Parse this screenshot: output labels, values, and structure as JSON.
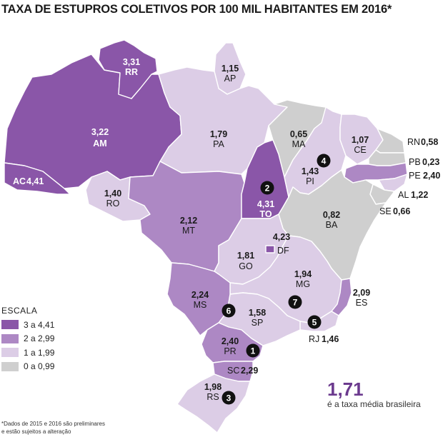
{
  "title": "TAXA DE ESTUPROS COLETIVOS POR 100 MIL HABITANTES EM 2016*",
  "colors": {
    "c1": "#8a56a8",
    "c2": "#ad88c4",
    "c3": "#dccde6",
    "c4": "#cfcfcf",
    "accent": "#6b3a8e",
    "marker": "#111111"
  },
  "legend": {
    "title": "ESCALA",
    "items": [
      {
        "label": "3 a 4,41",
        "color": "#8a56a8"
      },
      {
        "label": "2 a 2,99",
        "color": "#ad88c4"
      },
      {
        "label": "1 a 1,99",
        "color": "#dccde6"
      },
      {
        "label": "0 a 0,99",
        "color": "#cfcfcf"
      }
    ]
  },
  "states": {
    "AC": {
      "value": "4,41",
      "abbr": "AC",
      "category": "3 a 4,41"
    },
    "AM": {
      "value": "3,22",
      "abbr": "AM",
      "category": "3 a 4,41"
    },
    "RR": {
      "value": "3,31",
      "abbr": "RR",
      "category": "3 a 4,41"
    },
    "AP": {
      "value": "1,15",
      "abbr": "AP",
      "category": "1 a 1,99"
    },
    "PA": {
      "value": "1,79",
      "abbr": "PA",
      "category": "1 a 1,99"
    },
    "RO": {
      "value": "1,40",
      "abbr": "RO",
      "category": "1 a 1,99"
    },
    "MT": {
      "value": "2,12",
      "abbr": "MT",
      "category": "2 a 2,99"
    },
    "TO": {
      "value": "4,31",
      "abbr": "TO",
      "category": "3 a 4,41"
    },
    "MA": {
      "value": "0,65",
      "abbr": "MA",
      "category": "0 a 0,99"
    },
    "PI": {
      "value": "1,43",
      "abbr": "PI",
      "category": "1 a 1,99"
    },
    "CE": {
      "value": "1,07",
      "abbr": "CE",
      "category": "1 a 1,99"
    },
    "RN": {
      "value": "0,58",
      "abbr": "RN",
      "category": "0 a 0,99"
    },
    "PB": {
      "value": "0,23",
      "abbr": "PB",
      "category": "0 a 0,99"
    },
    "PE": {
      "value": "2,40",
      "abbr": "PE",
      "category": "2 a 2,99"
    },
    "AL": {
      "value": "1,22",
      "abbr": "AL",
      "category": "1 a 1,99"
    },
    "SE": {
      "value": "0,66",
      "abbr": "SE",
      "category": "0 a 0,99"
    },
    "BA": {
      "value": "0,82",
      "abbr": "BA",
      "category": "0 a 0,99"
    },
    "DF": {
      "value": "4,23",
      "abbr": "DF",
      "category": "3 a 4,41"
    },
    "GO": {
      "value": "1,81",
      "abbr": "GO",
      "category": "1 a 1,99"
    },
    "MG": {
      "value": "1,94",
      "abbr": "MG",
      "category": "1 a 1,99"
    },
    "ES": {
      "value": "2,09",
      "abbr": "ES",
      "category": "2 a 2,99"
    },
    "RJ": {
      "value": "1,46",
      "abbr": "RJ",
      "category": "1 a 1,99"
    },
    "SP": {
      "value": "1,58",
      "abbr": "SP",
      "category": "1 a 1,99"
    },
    "MS": {
      "value": "2,24",
      "abbr": "MS",
      "category": "2 a 2,99"
    },
    "PR": {
      "value": "2,40",
      "abbr": "PR",
      "category": "2 a 2,99"
    },
    "SC": {
      "value": "2,29",
      "abbr": "SC",
      "category": "2 a 2,99"
    },
    "RS": {
      "value": "1,98",
      "abbr": "RS",
      "category": "1 a 1,99"
    }
  },
  "ranking": {
    "1": "1",
    "2": "2",
    "3": "3",
    "4": "4",
    "5": "5",
    "6": "6",
    "7": "7"
  },
  "average": {
    "value": "1,71",
    "text": "é a taxa média brasileira"
  },
  "footnote": {
    "line1": "*Dados de 2015 e 2016 são preliminares",
    "line2": "e estão sujeitos a alteração"
  }
}
